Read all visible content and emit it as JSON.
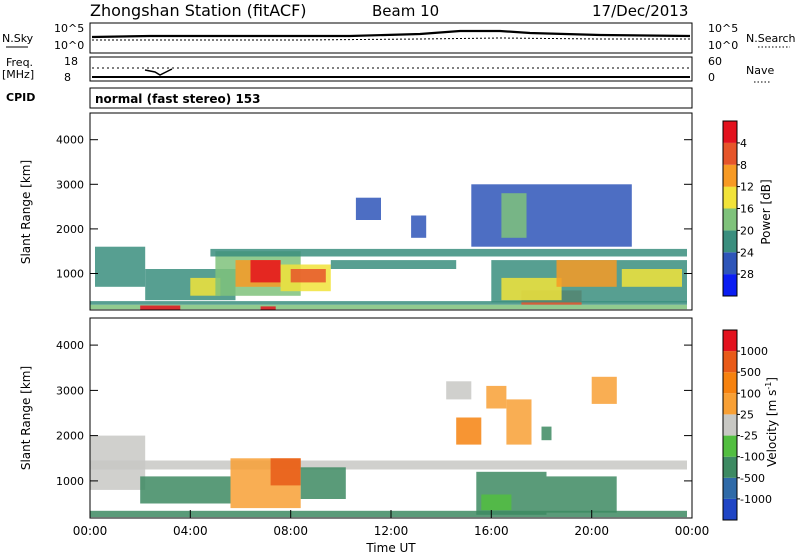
{
  "header": {
    "station": "Zhongshan Station (fitACF)",
    "beam": "Beam 10",
    "date": "17/Dec/2013"
  },
  "strip_panels": {
    "nsky": {
      "label": "N.Sky",
      "ticks": [
        "10^5",
        "10^0"
      ]
    },
    "nsearch": {
      "label": "N.Search",
      "ticks": [
        "10^5",
        "10^0"
      ]
    },
    "freq": {
      "label_line1": "Freq.",
      "label_line2": "[MHz]",
      "ticks": [
        "18",
        "8"
      ]
    },
    "nave": {
      "label": "Nave",
      "ticks": [
        "60",
        "0"
      ]
    },
    "cpid": {
      "label": "CPID",
      "text": "normal (fast stereo) 153"
    }
  },
  "chart_data": [
    {
      "type": "heatmap",
      "name": "power",
      "ylabel": "Slant Range [km]",
      "xlabel": "",
      "xlim": [
        0,
        24
      ],
      "ylim": [
        180,
        4600
      ],
      "y_ticks": [
        1000,
        2000,
        3000,
        4000
      ],
      "colorbar": {
        "label": "Power [dB]",
        "ticks": [
          "4",
          "8",
          "12",
          "16",
          "20",
          "24",
          "28"
        ],
        "colors": [
          "#0a1df2",
          "#2e55b8",
          "#3a8e7e",
          "#7fc27b",
          "#f1e33a",
          "#f79a24",
          "#e6552a",
          "#e3121e"
        ]
      },
      "regions": [
        {
          "t0": 0.0,
          "t1": 23.8,
          "r0": 200,
          "r1": 300,
          "level": 3
        },
        {
          "t0": 0.0,
          "t1": 23.8,
          "r0": 300,
          "r1": 380,
          "level": 2
        },
        {
          "t0": 2.0,
          "t1": 3.6,
          "r0": 180,
          "r1": 280,
          "level": 7
        },
        {
          "t0": 6.8,
          "t1": 7.4,
          "r0": 180,
          "r1": 260,
          "level": 7
        },
        {
          "t0": 17.2,
          "t1": 19.6,
          "r0": 300,
          "r1": 620,
          "level": 6
        },
        {
          "t0": 0.2,
          "t1": 2.2,
          "r0": 700,
          "r1": 1600,
          "level": 2
        },
        {
          "t0": 2.2,
          "t1": 5.8,
          "r0": 400,
          "r1": 1100,
          "level": 2
        },
        {
          "t0": 4.0,
          "t1": 5.2,
          "r0": 500,
          "r1": 900,
          "level": 4
        },
        {
          "t0": 5.0,
          "t1": 8.4,
          "r0": 500,
          "r1": 1500,
          "level": 3
        },
        {
          "t0": 5.8,
          "t1": 7.6,
          "r0": 700,
          "r1": 1300,
          "level": 5
        },
        {
          "t0": 6.4,
          "t1": 7.6,
          "r0": 800,
          "r1": 1300,
          "level": 7
        },
        {
          "t0": 7.6,
          "t1": 9.6,
          "r0": 600,
          "r1": 1200,
          "level": 4
        },
        {
          "t0": 8.0,
          "t1": 9.4,
          "r0": 800,
          "r1": 1100,
          "level": 6
        },
        {
          "t0": 9.6,
          "t1": 14.6,
          "r0": 1100,
          "r1": 1300,
          "level": 2
        },
        {
          "t0": 4.8,
          "t1": 23.8,
          "r0": 1380,
          "r1": 1550,
          "level": 2
        },
        {
          "t0": 16.0,
          "t1": 23.8,
          "r0": 350,
          "r1": 1300,
          "level": 2
        },
        {
          "t0": 16.4,
          "t1": 18.8,
          "r0": 400,
          "r1": 900,
          "level": 4
        },
        {
          "t0": 18.6,
          "t1": 21.0,
          "r0": 700,
          "r1": 1300,
          "level": 5
        },
        {
          "t0": 21.2,
          "t1": 23.6,
          "r0": 700,
          "r1": 1100,
          "level": 4
        },
        {
          "t0": 15.2,
          "t1": 21.6,
          "r0": 1600,
          "r1": 3000,
          "level": 1
        },
        {
          "t0": 16.4,
          "t1": 17.4,
          "r0": 1800,
          "r1": 2800,
          "level": 3
        },
        {
          "t0": 10.6,
          "t1": 11.6,
          "r0": 2200,
          "r1": 2700,
          "level": 1
        },
        {
          "t0": 12.8,
          "t1": 13.4,
          "r0": 1800,
          "r1": 2300,
          "level": 1
        }
      ]
    },
    {
      "type": "heatmap",
      "name": "velocity",
      "ylabel": "Slant Range [km]",
      "xlabel": "Time UT",
      "xlim": [
        0,
        24
      ],
      "ylim": [
        180,
        4600
      ],
      "x_ticks": [
        "00:00",
        "04:00",
        "08:00",
        "12:00",
        "16:00",
        "20:00",
        "00:00"
      ],
      "y_ticks": [
        1000,
        2000,
        3000,
        4000
      ],
      "colorbar": {
        "label": "Velocity [m s^-1]",
        "ticks": [
          "1000",
          "500",
          "100",
          "25",
          "-25",
          "-100",
          "-500",
          "-1000"
        ],
        "colors": [
          "#1f45c5",
          "#2f6aa8",
          "#3d8a62",
          "#52be40",
          "#c8c8c4",
          "#f8a035",
          "#f6820f",
          "#e85a18",
          "#e3121e"
        ]
      },
      "regions": [
        {
          "t0": 0.0,
          "t1": 23.8,
          "r0": 200,
          "r1": 340,
          "level": 2
        },
        {
          "t0": 0.0,
          "t1": 2.2,
          "r0": 800,
          "r1": 2000,
          "level": 4
        },
        {
          "t0": 0.0,
          "t1": 23.8,
          "r0": 1250,
          "r1": 1450,
          "level": 4
        },
        {
          "t0": 2.0,
          "t1": 5.6,
          "r0": 500,
          "r1": 1100,
          "level": 2
        },
        {
          "t0": 5.6,
          "t1": 8.4,
          "r0": 400,
          "r1": 1500,
          "level": 5
        },
        {
          "t0": 7.2,
          "t1": 8.4,
          "r0": 900,
          "r1": 1500,
          "level": 7
        },
        {
          "t0": 8.4,
          "t1": 10.2,
          "r0": 600,
          "r1": 1300,
          "level": 2
        },
        {
          "t0": 15.4,
          "t1": 18.2,
          "r0": 250,
          "r1": 1200,
          "level": 2
        },
        {
          "t0": 18.2,
          "t1": 21.0,
          "r0": 300,
          "r1": 1100,
          "level": 2
        },
        {
          "t0": 15.6,
          "t1": 16.8,
          "r0": 350,
          "r1": 700,
          "level": 3
        },
        {
          "t0": 16.6,
          "t1": 17.6,
          "r0": 1800,
          "r1": 2800,
          "level": 5
        },
        {
          "t0": 18.0,
          "t1": 18.4,
          "r0": 1900,
          "r1": 2200,
          "level": 2
        },
        {
          "t0": 20.0,
          "t1": 21.0,
          "r0": 2700,
          "r1": 3300,
          "level": 5
        },
        {
          "t0": 14.6,
          "t1": 15.6,
          "r0": 1800,
          "r1": 2400,
          "level": 6
        },
        {
          "t0": 15.8,
          "t1": 16.6,
          "r0": 2600,
          "r1": 3100,
          "level": 5
        },
        {
          "t0": 14.2,
          "t1": 15.2,
          "r0": 2800,
          "r1": 3200,
          "level": 4
        }
      ]
    }
  ]
}
